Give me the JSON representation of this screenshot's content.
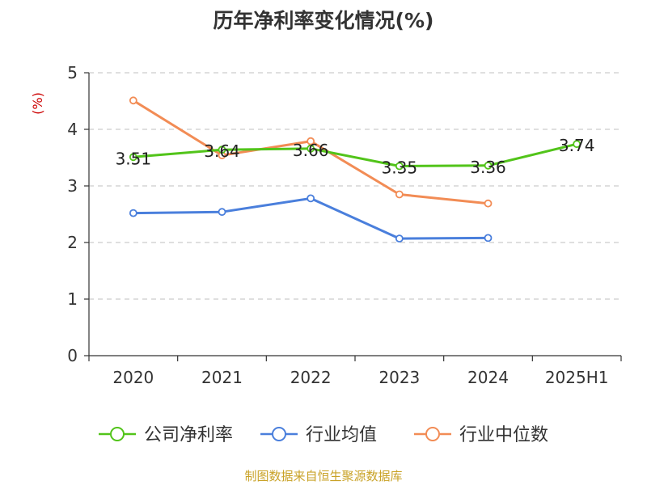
{
  "chart_data": {
    "type": "line",
    "title": "历年净利率变化情况(%)",
    "ylabel": "(%)",
    "xlabel": "",
    "categories": [
      "2020",
      "2021",
      "2022",
      "2023",
      "2024",
      "2025H1"
    ],
    "ylim": [
      0,
      5
    ],
    "yticks": [
      0,
      1,
      2,
      3,
      4,
      5
    ],
    "grid": true,
    "legend_position": "bottom",
    "series": [
      {
        "name": "公司净利率",
        "color": "#52c41a",
        "values": [
          3.51,
          3.64,
          3.66,
          3.35,
          3.36,
          3.74
        ],
        "labels": [
          "3.51",
          "3.64",
          "3.66",
          "3.35",
          "3.36",
          "3.74"
        ]
      },
      {
        "name": "行业均值",
        "color": "#4a7fdc",
        "values": [
          2.52,
          2.54,
          2.78,
          2.07,
          2.08,
          null
        ]
      },
      {
        "name": "行业中位数",
        "color": "#f28c55",
        "values": [
          4.51,
          3.54,
          3.79,
          2.85,
          2.69,
          null
        ]
      }
    ]
  },
  "source": "制图数据来自恒生聚源数据库",
  "colors": {
    "axis": "#333333",
    "grid": "#cccccc",
    "ylabel": "#cc0000",
    "source": "#c9a227"
  }
}
